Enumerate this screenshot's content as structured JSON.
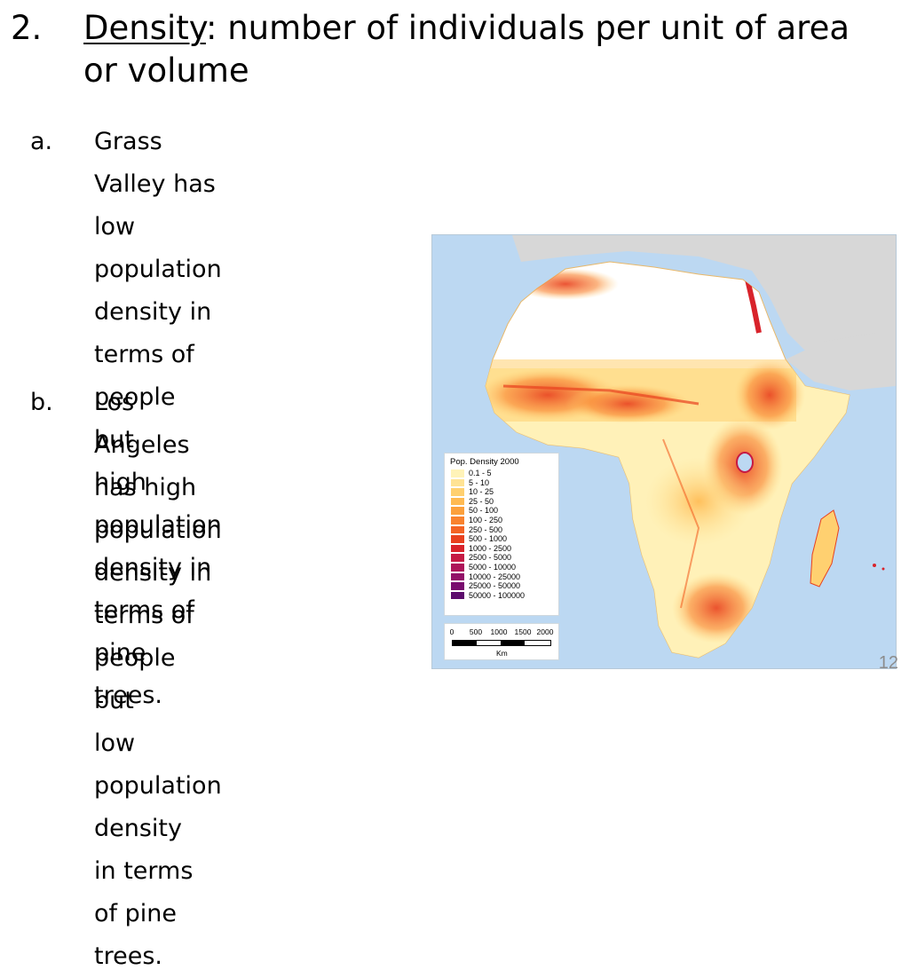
{
  "heading": {
    "number": "2.",
    "term": "Density",
    "definition": ": number of individuals per unit of area or volume"
  },
  "items": [
    {
      "marker": "a.",
      "text": "Grass Valley has low\npopulation density in\nterms of people but\nhigh population\ndensity in terms of\npine trees."
    },
    {
      "marker": "b.",
      "text": "Los Angeles has high\npopulation density in\nterms of people but\nlow population density\nin terms of pine trees."
    }
  ],
  "map": {
    "legend_title": "Pop. Density 2000",
    "legend": [
      {
        "label": "0.1 - 5",
        "color": "#fff3b8"
      },
      {
        "label": "5 - 10",
        "color": "#ffe394"
      },
      {
        "label": "10 - 25",
        "color": "#ffd070"
      },
      {
        "label": "25 - 50",
        "color": "#ffba52"
      },
      {
        "label": "50 - 100",
        "color": "#fca03c"
      },
      {
        "label": "100 - 250",
        "color": "#f9822e"
      },
      {
        "label": "250 - 500",
        "color": "#f36324"
      },
      {
        "label": "500 - 1000",
        "color": "#e8411f"
      },
      {
        "label": "1000 - 2500",
        "color": "#d8232b"
      },
      {
        "label": "2500 - 5000",
        "color": "#c51a44"
      },
      {
        "label": "5000 - 10000",
        "color": "#ad1458"
      },
      {
        "label": "10000 - 25000",
        "color": "#921067"
      },
      {
        "label": "25000 - 50000",
        "color": "#790c6e"
      },
      {
        "label": "50000 - 100000",
        "color": "#5c0a6c"
      }
    ],
    "scale_ticks": [
      "0",
      "500",
      "1000",
      "1500",
      "2000"
    ],
    "scale_unit": "Km",
    "colors": {
      "ocean": "#bcd8f2",
      "other_land": "#d7d7d7",
      "africa_base": "#ffffff"
    }
  },
  "page_number": "12"
}
